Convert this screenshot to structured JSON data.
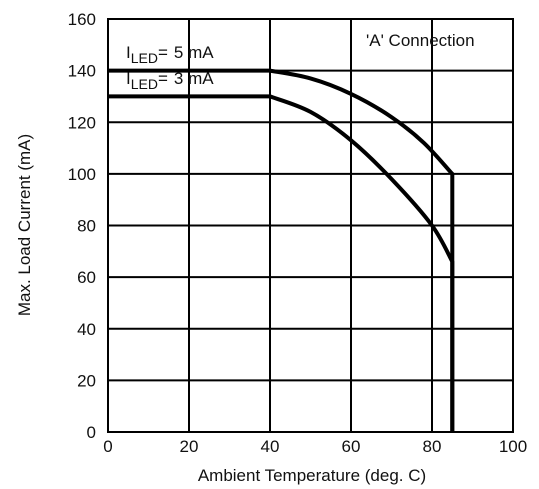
{
  "chart_data": {
    "type": "line",
    "title": "",
    "xlabel": "Ambient Temperature (deg. C)",
    "ylabel": "Max. Load Current (mA)",
    "xlim": [
      0,
      100
    ],
    "ylim": [
      0,
      160
    ],
    "x_ticks": [
      "0",
      "20",
      "40",
      "60",
      "80",
      "100"
    ],
    "y_ticks": [
      "0",
      "20",
      "40",
      "60",
      "80",
      "100",
      "120",
      "140",
      "160"
    ],
    "grid": true,
    "annotation": "'A' Connection",
    "series": [
      {
        "label_prefix": "I",
        "label_sub": "LED",
        "label_eq": "=",
        "label_value": "5 mA",
        "x": [
          0,
          40,
          50,
          60,
          70,
          78,
          85,
          85
        ],
        "y": [
          140,
          140,
          137,
          131,
          122,
          112,
          100,
          0
        ]
      },
      {
        "label_prefix": "I",
        "label_sub": "LED",
        "label_eq": "=",
        "label_value": "3 mA",
        "x": [
          0,
          40,
          50,
          60,
          70,
          80,
          85,
          85
        ],
        "y": [
          130,
          130,
          124,
          113,
          98,
          80,
          66,
          0
        ]
      }
    ]
  }
}
